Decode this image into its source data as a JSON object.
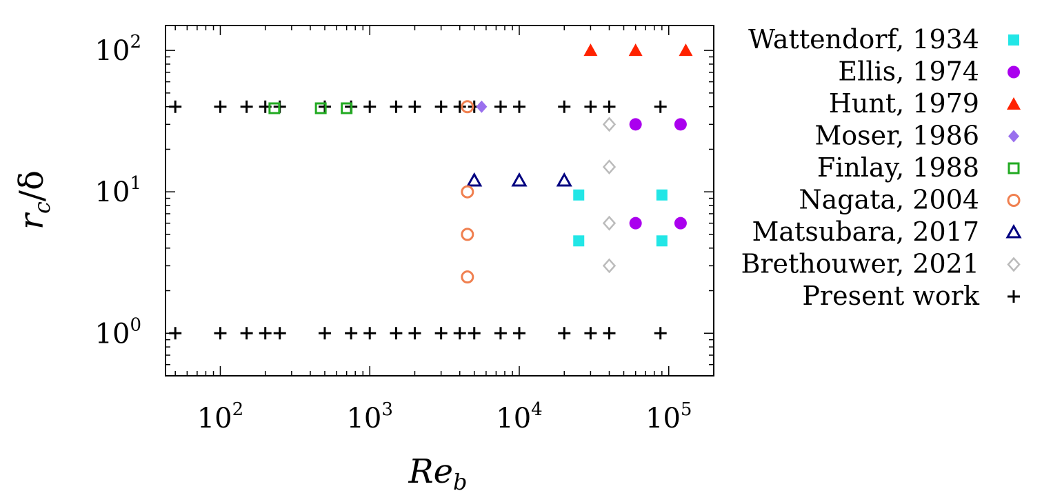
{
  "chart_data": {
    "type": "scatter",
    "title": "",
    "xlabel": "Re",
    "xlabel_sub": "b",
    "ylabel": "r",
    "ylabel_sub": "c",
    "ylabel_tail": "/δ",
    "x_scale": "log",
    "y_scale": "log",
    "xlim": [
      43,
      200000
    ],
    "ylim": [
      0.5,
      150
    ],
    "grid": false,
    "legend_position": "outside-right",
    "x_ticks": [
      {
        "base": "10",
        "exp": "2",
        "value": 100
      },
      {
        "base": "10",
        "exp": "3",
        "value": 1000
      },
      {
        "base": "10",
        "exp": "4",
        "value": 10000
      },
      {
        "base": "10",
        "exp": "5",
        "value": 100000
      }
    ],
    "y_ticks": [
      {
        "base": "10",
        "exp": "0",
        "value": 1
      },
      {
        "base": "10",
        "exp": "1",
        "value": 10
      },
      {
        "base": "10",
        "exp": "2",
        "value": 100
      }
    ],
    "series": [
      {
        "name": "Wattendorf, 1934",
        "marker": "square-filled",
        "color": "#22e6e6",
        "points": [
          [
            25000,
            9.5
          ],
          [
            25000,
            4.5
          ],
          [
            90000,
            9.5
          ],
          [
            90000,
            4.5
          ]
        ]
      },
      {
        "name": "Ellis, 1974",
        "marker": "circle-filled",
        "color": "#aa00ee",
        "points": [
          [
            60000,
            30
          ],
          [
            60000,
            6
          ],
          [
            120000,
            30
          ],
          [
            120000,
            6
          ]
        ]
      },
      {
        "name": "Hunt, 1979",
        "marker": "triangle-filled",
        "color": "#ff2200",
        "points": [
          [
            30000,
            100
          ],
          [
            60000,
            100
          ],
          [
            130000,
            100
          ]
        ]
      },
      {
        "name": "Moser, 1986",
        "marker": "diamond-filled",
        "color": "#9a70ee",
        "points": [
          [
            5600,
            40
          ]
        ]
      },
      {
        "name": "Finlay, 1988",
        "marker": "square-open",
        "color": "#22aa22",
        "points": [
          [
            230,
            39
          ],
          [
            470,
            39
          ],
          [
            700,
            39
          ]
        ]
      },
      {
        "name": "Nagata, 2004",
        "marker": "circle-open",
        "color": "#f08050",
        "points": [
          [
            4500,
            40
          ],
          [
            4500,
            10
          ],
          [
            4500,
            5
          ],
          [
            4500,
            2.5
          ]
        ]
      },
      {
        "name": "Matsubara, 2017",
        "marker": "triangle-open",
        "color": "#000080",
        "points": [
          [
            5000,
            12
          ],
          [
            10000,
            12
          ],
          [
            20000,
            12
          ]
        ]
      },
      {
        "name": "Brethouwer, 2021",
        "marker": "diamond-open",
        "color": "#bbbbbb",
        "points": [
          [
            40000,
            30
          ],
          [
            40000,
            15
          ],
          [
            40000,
            6
          ],
          [
            40000,
            3
          ]
        ]
      },
      {
        "name": "Present work",
        "marker": "plus",
        "color": "#000000",
        "points": [
          [
            50,
            40
          ],
          [
            100,
            40
          ],
          [
            150,
            40
          ],
          [
            200,
            40
          ],
          [
            250,
            40
          ],
          [
            500,
            40
          ],
          [
            750,
            40
          ],
          [
            1000,
            40
          ],
          [
            1500,
            40
          ],
          [
            2000,
            40
          ],
          [
            3000,
            40
          ],
          [
            4000,
            40
          ],
          [
            5000,
            40
          ],
          [
            7500,
            40
          ],
          [
            10000,
            40
          ],
          [
            20000,
            40
          ],
          [
            30000,
            40
          ],
          [
            40000,
            40
          ],
          [
            88000,
            40
          ],
          [
            50,
            1
          ],
          [
            100,
            1
          ],
          [
            150,
            1
          ],
          [
            200,
            1
          ],
          [
            250,
            1
          ],
          [
            500,
            1
          ],
          [
            750,
            1
          ],
          [
            1000,
            1
          ],
          [
            1500,
            1
          ],
          [
            2000,
            1
          ],
          [
            3000,
            1
          ],
          [
            4000,
            1
          ],
          [
            5000,
            1
          ],
          [
            7500,
            1
          ],
          [
            10000,
            1
          ],
          [
            20000,
            1
          ],
          [
            30000,
            1
          ],
          [
            40000,
            1
          ],
          [
            88000,
            1
          ]
        ]
      }
    ]
  }
}
